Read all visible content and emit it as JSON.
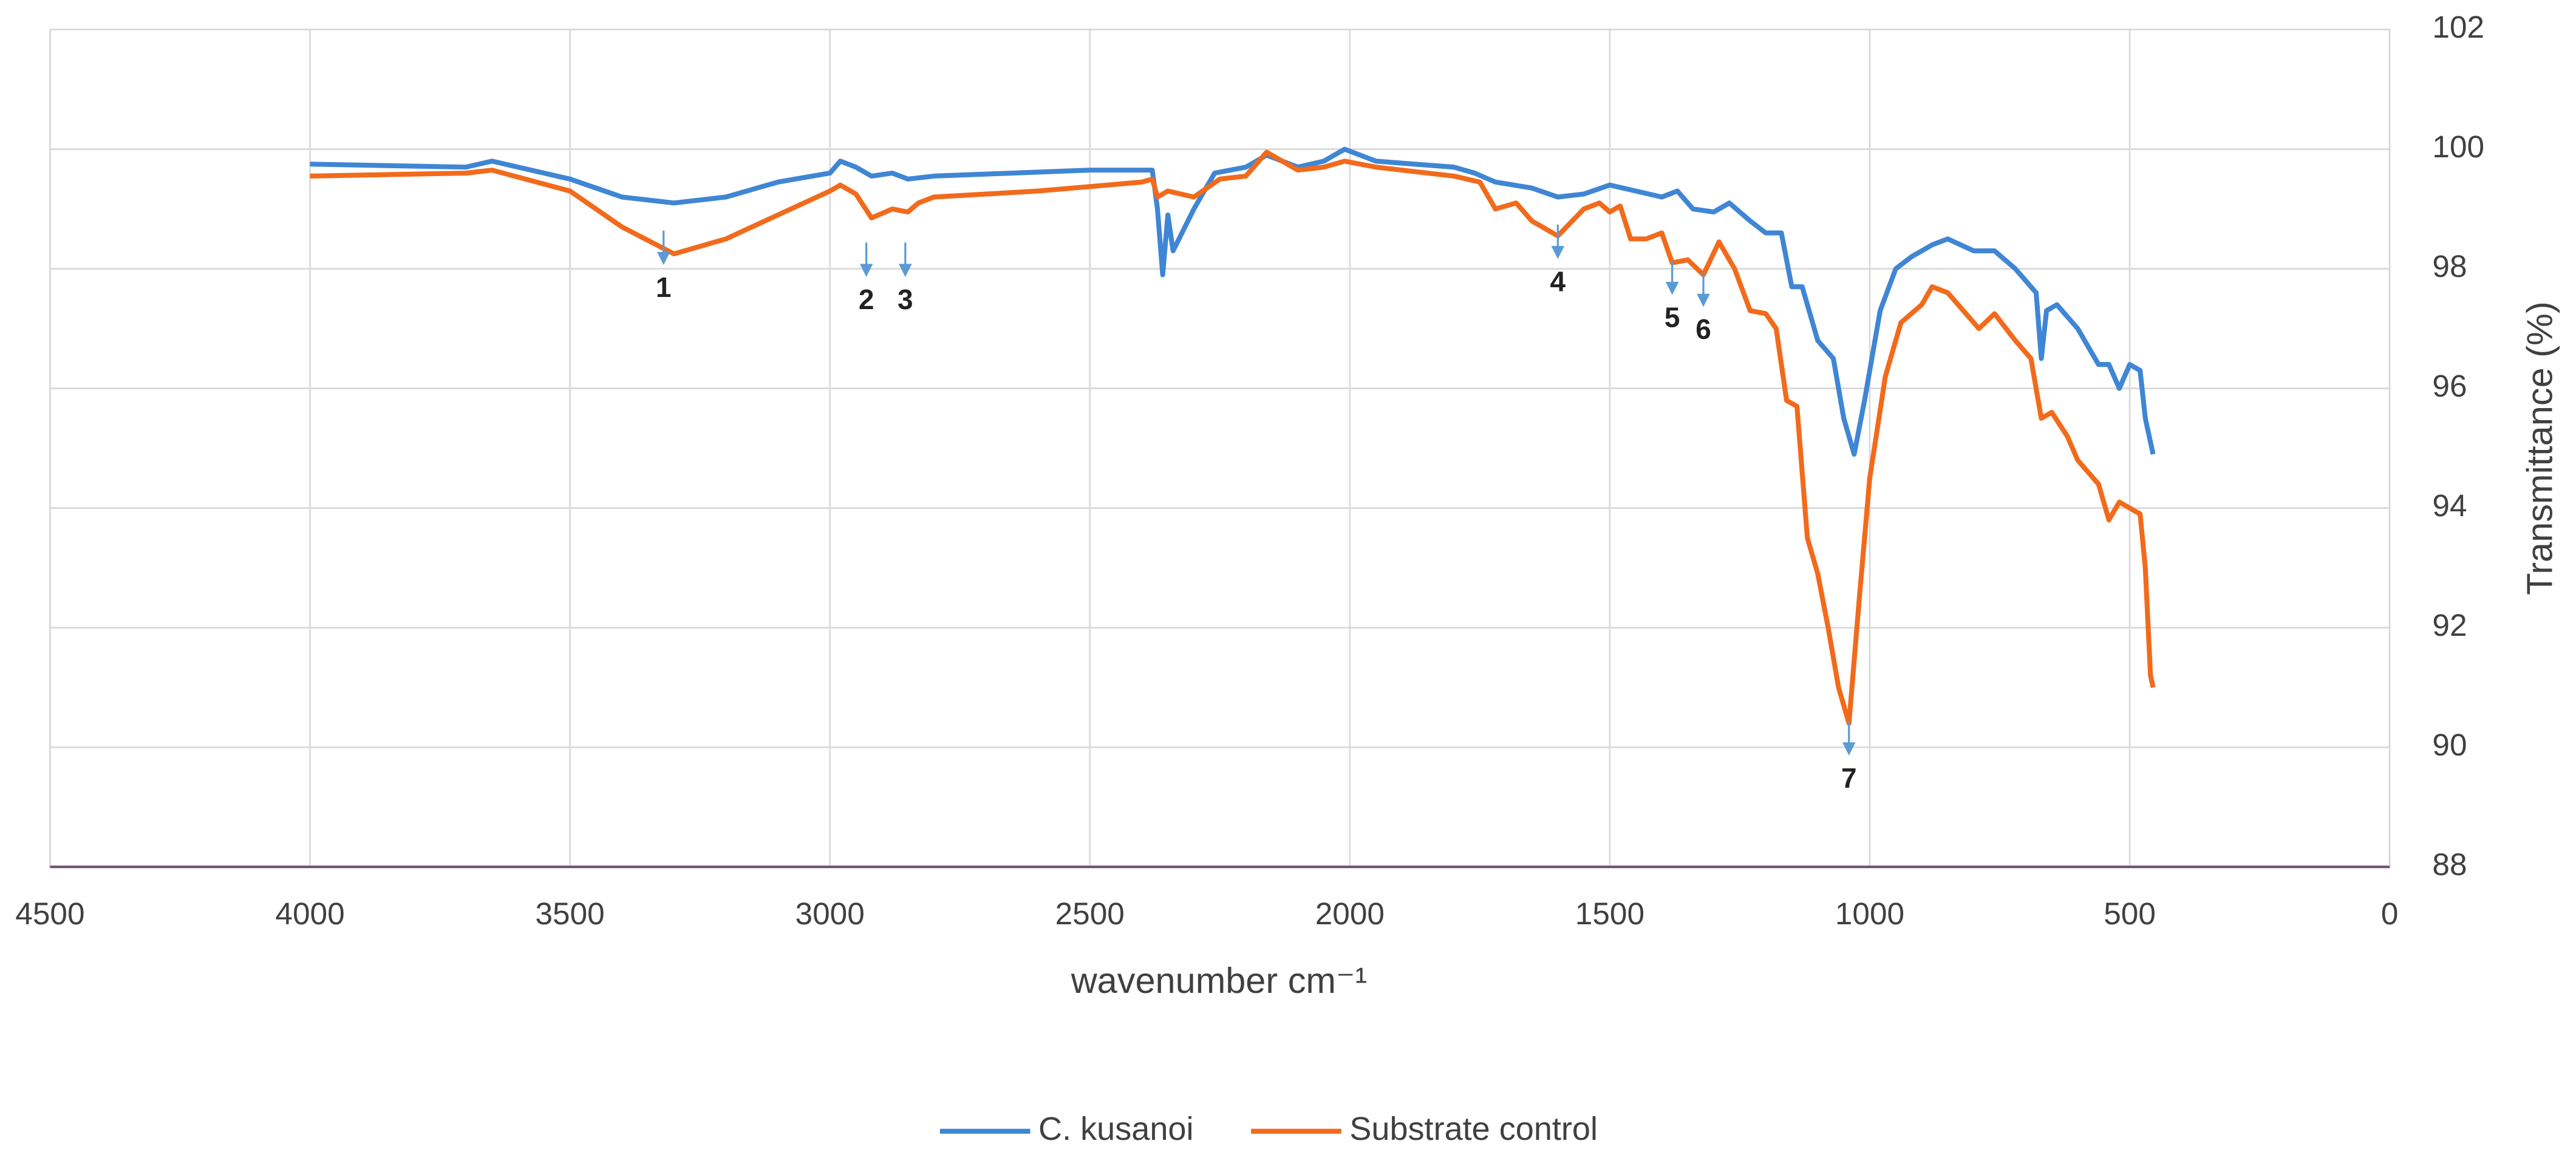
{
  "chart_data": {
    "type": "line",
    "x_label": "wavenumber cm⁻¹",
    "y_label": "Transmittance (%)",
    "xlim": [
      4500,
      0
    ],
    "xticks": [
      4500,
      4000,
      3500,
      3000,
      2500,
      2000,
      1500,
      1000,
      500,
      0
    ],
    "ylim": [
      88,
      102
    ],
    "yticks": [
      88,
      90,
      92,
      94,
      96,
      98,
      100,
      102
    ],
    "grid": true,
    "legend": "bottom",
    "series": [
      {
        "name": "C. kusanoi",
        "color": "#3f86d4",
        "x": [
          4000,
          3700,
          3650,
          3600,
          3500,
          3400,
          3300,
          3200,
          3100,
          3000,
          2980,
          2950,
          2920,
          2880,
          2850,
          2800,
          2500,
          2380,
          2370,
          2360,
          2350,
          2340,
          2300,
          2260,
          2200,
          2160,
          2100,
          2050,
          2010,
          1950,
          1800,
          1760,
          1720,
          1650,
          1600,
          1550,
          1500,
          1450,
          1400,
          1370,
          1340,
          1300,
          1270,
          1230,
          1200,
          1170,
          1150,
          1130,
          1100,
          1070,
          1050,
          1030,
          1010,
          980,
          950,
          920,
          880,
          850,
          800,
          760,
          720,
          680,
          670,
          660,
          640,
          600,
          560,
          540,
          520,
          500,
          480,
          470,
          455
        ],
        "values": [
          99.75,
          99.7,
          99.8,
          99.7,
          99.5,
          99.2,
          99.1,
          99.2,
          99.45,
          99.6,
          99.8,
          99.7,
          99.55,
          99.6,
          99.5,
          99.55,
          99.65,
          99.65,
          99.0,
          97.9,
          98.9,
          98.3,
          99.0,
          99.6,
          99.7,
          99.9,
          99.7,
          99.8,
          100.0,
          99.8,
          99.7,
          99.6,
          99.45,
          99.35,
          99.2,
          99.25,
          99.4,
          99.3,
          99.2,
          99.3,
          99.0,
          98.95,
          99.1,
          98.8,
          98.6,
          98.6,
          97.7,
          97.7,
          96.8,
          96.5,
          95.5,
          94.9,
          95.8,
          97.3,
          98.0,
          98.2,
          98.4,
          98.5,
          98.3,
          98.3,
          98.0,
          97.6,
          96.5,
          97.3,
          97.4,
          97.0,
          96.4,
          96.4,
          96.0,
          96.4,
          96.3,
          95.5,
          94.9
        ]
      },
      {
        "name": "Substrate control",
        "color": "#f26a1b",
        "x": [
          4000,
          3700,
          3650,
          3500,
          3400,
          3300,
          3200,
          3100,
          3000,
          2980,
          2950,
          2920,
          2880,
          2850,
          2830,
          2800,
          2600,
          2400,
          2380,
          2370,
          2350,
          2300,
          2250,
          2200,
          2160,
          2100,
          2050,
          2010,
          1950,
          1800,
          1750,
          1720,
          1680,
          1650,
          1600,
          1550,
          1520,
          1500,
          1480,
          1460,
          1430,
          1400,
          1380,
          1350,
          1320,
          1290,
          1260,
          1230,
          1200,
          1180,
          1160,
          1140,
          1120,
          1100,
          1080,
          1060,
          1040,
          1020,
          1000,
          970,
          940,
          900,
          880,
          850,
          820,
          790,
          760,
          720,
          690,
          670,
          650,
          620,
          600,
          560,
          540,
          520,
          500,
          480,
          470,
          460,
          455
        ],
        "values": [
          99.55,
          99.6,
          99.65,
          99.3,
          98.7,
          98.25,
          98.5,
          98.9,
          99.3,
          99.4,
          99.25,
          98.85,
          99.0,
          98.95,
          99.1,
          99.2,
          99.3,
          99.45,
          99.5,
          99.2,
          99.3,
          99.2,
          99.5,
          99.55,
          99.95,
          99.65,
          99.7,
          99.8,
          99.7,
          99.55,
          99.45,
          99.0,
          99.1,
          98.8,
          98.55,
          99.0,
          99.1,
          98.95,
          99.05,
          98.5,
          98.5,
          98.6,
          98.1,
          98.15,
          97.9,
          98.45,
          98.0,
          97.3,
          97.25,
          97.0,
          95.8,
          95.7,
          93.5,
          92.9,
          92.0,
          91.0,
          90.4,
          92.5,
          94.5,
          96.2,
          97.1,
          97.4,
          97.7,
          97.6,
          97.3,
          97.0,
          97.25,
          96.8,
          96.5,
          95.5,
          95.6,
          95.2,
          94.8,
          94.4,
          93.8,
          94.1,
          94.0,
          93.9,
          93.0,
          91.2,
          91.0
        ]
      }
    ],
    "annotations": [
      {
        "text": "1",
        "x": 3320,
        "y": 98.2
      },
      {
        "text": "2",
        "x": 2930,
        "y": 98.0
      },
      {
        "text": "3",
        "x": 2855,
        "y": 98.0
      },
      {
        "text": "4",
        "x": 1600,
        "y": 98.3
      },
      {
        "text": "5",
        "x": 1380,
        "y": 97.7
      },
      {
        "text": "6",
        "x": 1320,
        "y": 97.5
      },
      {
        "text": "7",
        "x": 1040,
        "y": 90.0
      }
    ]
  }
}
